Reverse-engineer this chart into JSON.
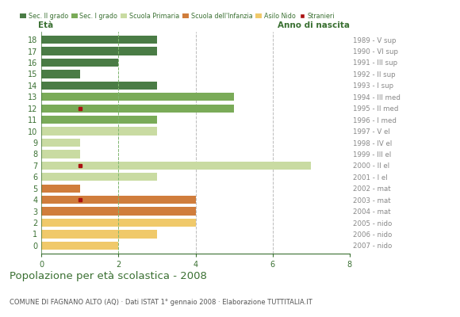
{
  "ages": [
    18,
    17,
    16,
    15,
    14,
    13,
    12,
    11,
    10,
    9,
    8,
    7,
    6,
    5,
    4,
    3,
    2,
    1,
    0
  ],
  "years": [
    "1989 - V sup",
    "1990 - VI sup",
    "1991 - III sup",
    "1992 - II sup",
    "1993 - I sup",
    "1994 - III med",
    "1995 - II med",
    "1996 - I med",
    "1997 - V el",
    "1998 - IV el",
    "1999 - III el",
    "2000 - II el",
    "2001 - I el",
    "2002 - mat",
    "2003 - mat",
    "2004 - mat",
    "2005 - nido",
    "2006 - nido",
    "2007 - nido"
  ],
  "bar_values": [
    3,
    3,
    2,
    1,
    3,
    5,
    5,
    3,
    3,
    1,
    1,
    7,
    3,
    1,
    4,
    4,
    4,
    3,
    2
  ],
  "bar_colors": [
    "#4a7c45",
    "#4a7c45",
    "#4a7c45",
    "#4a7c45",
    "#4a7c45",
    "#7aab58",
    "#7aab58",
    "#7aab58",
    "#c9dba2",
    "#c9dba2",
    "#c9dba2",
    "#c9dba2",
    "#c9dba2",
    "#d07d3c",
    "#d07d3c",
    "#d07d3c",
    "#f0c96a",
    "#f0c96a",
    "#f0c96a"
  ],
  "stranieri_ages": [
    12,
    7,
    4
  ],
  "stranieri_values": [
    1,
    1,
    1
  ],
  "stranieri_color": "#aa1111",
  "legend_labels": [
    "Sec. II grado",
    "Sec. I grado",
    "Scuola Primaria",
    "Scuola dell'Infanzia",
    "Asilo Nido",
    "Stranieri"
  ],
  "legend_colors": [
    "#4a7c45",
    "#7aab58",
    "#c9dba2",
    "#d07d3c",
    "#f0c96a",
    "#aa1111"
  ],
  "ylabel_left": "Età",
  "ylabel_right": "Anno di nascita",
  "title": "Popolazione per età scolastica - 2008",
  "subtitle": "COMUNE DI FAGNANO ALTO (AQ) · Dati ISTAT 1° gennaio 2008 · Elaborazione TUTTITALIA.IT",
  "xlim": [
    0,
    8
  ],
  "xticks": [
    0,
    2,
    4,
    6,
    8
  ],
  "bg_color": "#ffffff",
  "grid_color_main": "#bbbbbb",
  "grid_color_dashed_green": "#80b870",
  "bar_height": 0.72,
  "axis_color": "#3a7032",
  "year_label_color": "#888888",
  "tick_label_color": "#3a7032"
}
